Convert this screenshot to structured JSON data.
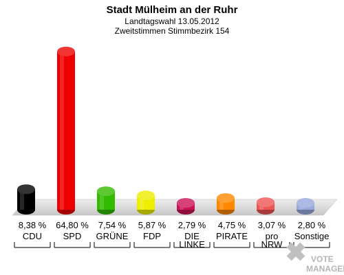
{
  "header": {
    "title": "Stadt Mülheim an der Ruhr",
    "subtitle1": "Landtagswahl 13.05.2012",
    "subtitle2": "Zweitstimmen Stimmbezirk 154"
  },
  "watermark": {
    "line1": "VOTE",
    "line2": "MANAGER"
  },
  "chart_data": {
    "type": "bar",
    "title": "Stadt Mülheim an der Ruhr",
    "categories": [
      "CDU",
      "SPD",
      "GRÜNE",
      "FDP",
      "DIE LINKE",
      "PIRATE",
      "pro NRW",
      "Sonstige"
    ],
    "category_lines": [
      [
        "CDU"
      ],
      [
        "SPD"
      ],
      [
        "GRÜNE"
      ],
      [
        "FDP"
      ],
      [
        "DIE",
        "LINKE"
      ],
      [
        "PIRATE"
      ],
      [
        "pro",
        "NRW"
      ],
      [
        "Sonstige"
      ]
    ],
    "values": [
      8.38,
      64.8,
      7.54,
      5.87,
      2.79,
      4.75,
      3.07,
      2.8
    ],
    "value_labels": [
      "8,38 %",
      "64,80 %",
      "7,54 %",
      "5,87 %",
      "2,79 %",
      "4,75 %",
      "3,07 %",
      "2,80 %"
    ],
    "colors": [
      "#000000",
      "#ee0000",
      "#33bb00",
      "#eeee00",
      "#cc1155",
      "#ff8800",
      "#ee5555",
      "#99aadd"
    ],
    "ylim": [
      0,
      64.8
    ],
    "grid": false,
    "legend": "none"
  }
}
